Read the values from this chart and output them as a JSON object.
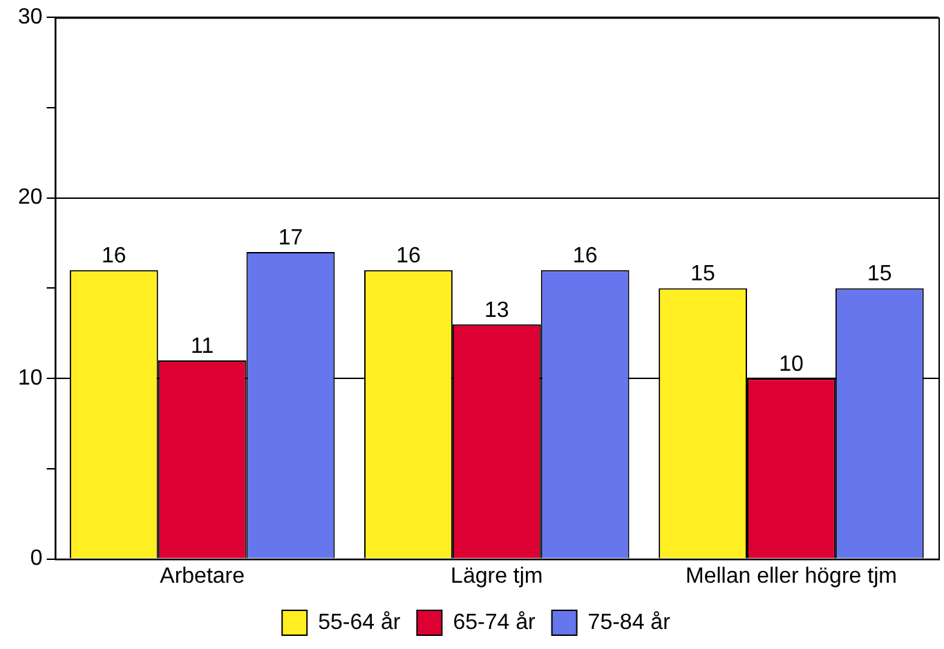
{
  "chart_data": {
    "type": "bar",
    "categories": [
      "Arbetare",
      "Lägre tjm",
      "Mellan eller högre tjm"
    ],
    "series": [
      {
        "name": "55-64 år",
        "color": "#ffee22",
        "values": [
          16,
          16,
          15
        ]
      },
      {
        "name": "65-74 år",
        "color": "#dd0033",
        "values": [
          11,
          13,
          10
        ]
      },
      {
        "name": "75-84 år",
        "color": "#6677ee",
        "values": [
          17,
          16,
          15
        ]
      }
    ],
    "ylim": [
      0,
      30
    ],
    "yticks": [
      0,
      {
        "value": 5,
        "label": null
      },
      10,
      {
        "value": 15,
        "label": null
      },
      20,
      {
        "value": 25,
        "label": null
      },
      30
    ],
    "grid": "y",
    "legend": "bottom",
    "data_labels": true
  }
}
